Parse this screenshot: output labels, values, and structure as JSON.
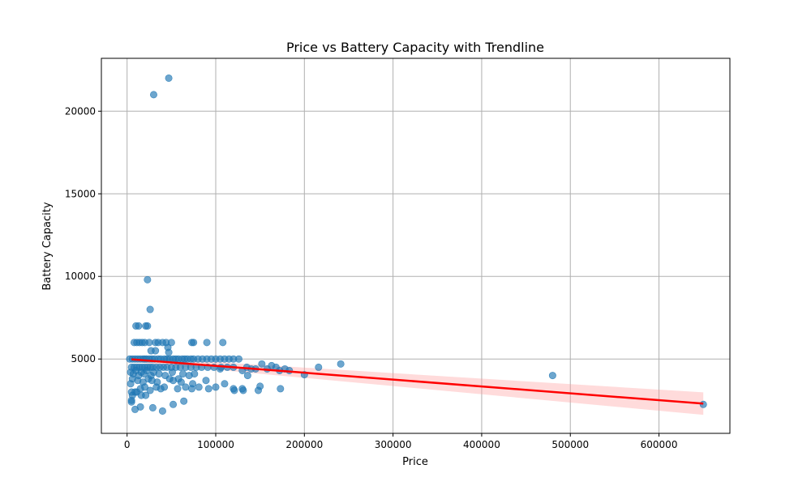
{
  "chart_data": {
    "type": "scatter",
    "title": "Price vs Battery Capacity with Trendline",
    "xlabel": "Price",
    "ylabel": "Battery Capacity",
    "xlim": [
      -29000,
      680000
    ],
    "ylim": [
      500,
      23200
    ],
    "xticks": [
      0,
      100000,
      200000,
      300000,
      400000,
      500000,
      600000
    ],
    "yticks": [
      5000,
      10000,
      15000,
      20000
    ],
    "grid": true,
    "colors": {
      "points": "#1f77b4",
      "trend": "#ff0000",
      "band": "#ff9999"
    },
    "trendline": {
      "x": [
        5000,
        650000
      ],
      "y": [
        4980,
        2300
      ],
      "ci_half_width_start": 150,
      "ci_half_width_end": 680
    },
    "points": [
      [
        47000,
        22000
      ],
      [
        30000,
        21000
      ],
      [
        23000,
        9800
      ],
      [
        26000,
        8000
      ],
      [
        10000,
        7000
      ],
      [
        13000,
        7000
      ],
      [
        23000,
        7000
      ],
      [
        21000,
        7000
      ],
      [
        8000,
        6000
      ],
      [
        11000,
        6000
      ],
      [
        14000,
        6000
      ],
      [
        17000,
        6000
      ],
      [
        20000,
        6000
      ],
      [
        25000,
        6000
      ],
      [
        32000,
        6000
      ],
      [
        35000,
        6000
      ],
      [
        40000,
        6000
      ],
      [
        44000,
        6000
      ],
      [
        50000,
        6000
      ],
      [
        73000,
        6000
      ],
      [
        75000,
        6000
      ],
      [
        90000,
        6000
      ],
      [
        108000,
        6000
      ],
      [
        46000,
        5700
      ],
      [
        27000,
        5500
      ],
      [
        32000,
        5500
      ],
      [
        47000,
        5400
      ],
      [
        3000,
        5000
      ],
      [
        6000,
        5000
      ],
      [
        9000,
        5000
      ],
      [
        12000,
        5000
      ],
      [
        15000,
        5000
      ],
      [
        18000,
        5000
      ],
      [
        20000,
        5000
      ],
      [
        22000,
        5000
      ],
      [
        25000,
        5000
      ],
      [
        28000,
        5000
      ],
      [
        31000,
        5000
      ],
      [
        35000,
        5000
      ],
      [
        38000,
        5000
      ],
      [
        42000,
        5000
      ],
      [
        45000,
        5000
      ],
      [
        48000,
        5000
      ],
      [
        52000,
        5000
      ],
      [
        55000,
        5000
      ],
      [
        58000,
        5000
      ],
      [
        62000,
        5000
      ],
      [
        65000,
        5000
      ],
      [
        68000,
        5000
      ],
      [
        72000,
        5000
      ],
      [
        75000,
        5000
      ],
      [
        80000,
        5000
      ],
      [
        85000,
        5000
      ],
      [
        90000,
        5000
      ],
      [
        95000,
        5000
      ],
      [
        100000,
        5000
      ],
      [
        105000,
        5000
      ],
      [
        110000,
        5000
      ],
      [
        115000,
        5000
      ],
      [
        120000,
        5000
      ],
      [
        126000,
        5000
      ],
      [
        5000,
        4500
      ],
      [
        8000,
        4500
      ],
      [
        11000,
        4500
      ],
      [
        14000,
        4500
      ],
      [
        17000,
        4500
      ],
      [
        20000,
        4500
      ],
      [
        23000,
        4500
      ],
      [
        26000,
        4500
      ],
      [
        29000,
        4500
      ],
      [
        33000,
        4500
      ],
      [
        37000,
        4500
      ],
      [
        41000,
        4500
      ],
      [
        45000,
        4500
      ],
      [
        50000,
        4500
      ],
      [
        55000,
        4500
      ],
      [
        60000,
        4500
      ],
      [
        66000,
        4500
      ],
      [
        72000,
        4500
      ],
      [
        78000,
        4500
      ],
      [
        84000,
        4500
      ],
      [
        91000,
        4500
      ],
      [
        98000,
        4500
      ],
      [
        106000,
        4500
      ],
      [
        113000,
        4500
      ],
      [
        120000,
        4500
      ],
      [
        135000,
        4500
      ],
      [
        145000,
        4400
      ],
      [
        152000,
        4700
      ],
      [
        158000,
        4400
      ],
      [
        163000,
        4600
      ],
      [
        168000,
        4500
      ],
      [
        172000,
        4300
      ],
      [
        178000,
        4400
      ],
      [
        183000,
        4300
      ],
      [
        200000,
        4050
      ],
      [
        216000,
        4500
      ],
      [
        241000,
        4700
      ],
      [
        480000,
        4000
      ],
      [
        650000,
        2250
      ],
      [
        4000,
        4200
      ],
      [
        7000,
        4100
      ],
      [
        10000,
        4300
      ],
      [
        13000,
        4000
      ],
      [
        16000,
        4200
      ],
      [
        19000,
        4100
      ],
      [
        22000,
        4300
      ],
      [
        27000,
        4000
      ],
      [
        30000,
        4200
      ],
      [
        36000,
        4100
      ],
      [
        43000,
        4000
      ],
      [
        51000,
        4200
      ],
      [
        63000,
        4100
      ],
      [
        70000,
        4000
      ],
      [
        76000,
        4100
      ],
      [
        105000,
        4400
      ],
      [
        130000,
        4300
      ],
      [
        136000,
        4000
      ],
      [
        140000,
        4400
      ],
      [
        6000,
        3800
      ],
      [
        12000,
        3700
      ],
      [
        18000,
        3600
      ],
      [
        24000,
        3800
      ],
      [
        28000,
        3700
      ],
      [
        34000,
        3600
      ],
      [
        48000,
        3800
      ],
      [
        52000,
        3700
      ],
      [
        58000,
        3800
      ],
      [
        61000,
        3600
      ],
      [
        74000,
        3500
      ],
      [
        89000,
        3700
      ],
      [
        110000,
        3500
      ],
      [
        4000,
        3500
      ],
      [
        9000,
        3000
      ],
      [
        15000,
        3200
      ],
      [
        20000,
        3300
      ],
      [
        26000,
        3100
      ],
      [
        33000,
        3300
      ],
      [
        38000,
        3200
      ],
      [
        42000,
        3300
      ],
      [
        57000,
        3200
      ],
      [
        66000,
        3300
      ],
      [
        73000,
        3200
      ],
      [
        81000,
        3300
      ],
      [
        92000,
        3200
      ],
      [
        100000,
        3300
      ],
      [
        120000,
        3200
      ],
      [
        121000,
        3100
      ],
      [
        130000,
        3200
      ],
      [
        131000,
        3100
      ],
      [
        148000,
        3100
      ],
      [
        150000,
        3350
      ],
      [
        173000,
        3200
      ],
      [
        5000,
        3000
      ],
      [
        6000,
        2800
      ],
      [
        11000,
        3000
      ],
      [
        16000,
        2800
      ],
      [
        21000,
        2800
      ],
      [
        5000,
        2500
      ],
      [
        5000,
        2400
      ],
      [
        15000,
        2100
      ],
      [
        9000,
        1950
      ],
      [
        29000,
        2050
      ],
      [
        40000,
        1850
      ],
      [
        52000,
        2250
      ],
      [
        64000,
        2450
      ]
    ]
  }
}
